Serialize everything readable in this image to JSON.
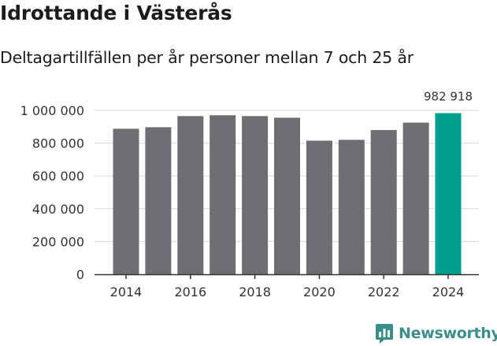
{
  "title": "Idrottande i Västerås",
  "subtitle": "Deltagartillfällen per år personer mellan 7 och 25 år",
  "brand": {
    "name": "Newsworthy",
    "icon": "bar-chart-speech-bubble-icon",
    "color": "#3a8f8a"
  },
  "colors": {
    "bar": "#6e6d72",
    "highlight": "#009e8f",
    "grid": "#d9d9d9",
    "axis": "#333333"
  },
  "chart_data": {
    "type": "bar",
    "title": "Idrottande i Västerås",
    "subtitle": "Deltagartillfällen per år personer mellan 7 och 25 år",
    "categories": [
      "2014",
      "2015",
      "2016",
      "2017",
      "2018",
      "2019",
      "2020",
      "2021",
      "2022",
      "2023",
      "2024"
    ],
    "values": [
      888000,
      897000,
      965000,
      970000,
      965000,
      955000,
      815000,
      820000,
      880000,
      925000,
      982918
    ],
    "highlight_index": 10,
    "data_labels": [
      {
        "index": 10,
        "text": "982 918"
      }
    ],
    "x_tick_labels": [
      "2014",
      "2016",
      "2018",
      "2020",
      "2022",
      "2024"
    ],
    "y_ticks": [
      0,
      200000,
      400000,
      600000,
      800000,
      1000000
    ],
    "y_tick_labels": [
      "0",
      "200 000",
      "400 000",
      "600 000",
      "800 000",
      "1 000 000"
    ],
    "ylim": [
      0,
      1000000
    ],
    "xlabel": "",
    "ylabel": "",
    "grid": true,
    "legend": "none"
  }
}
